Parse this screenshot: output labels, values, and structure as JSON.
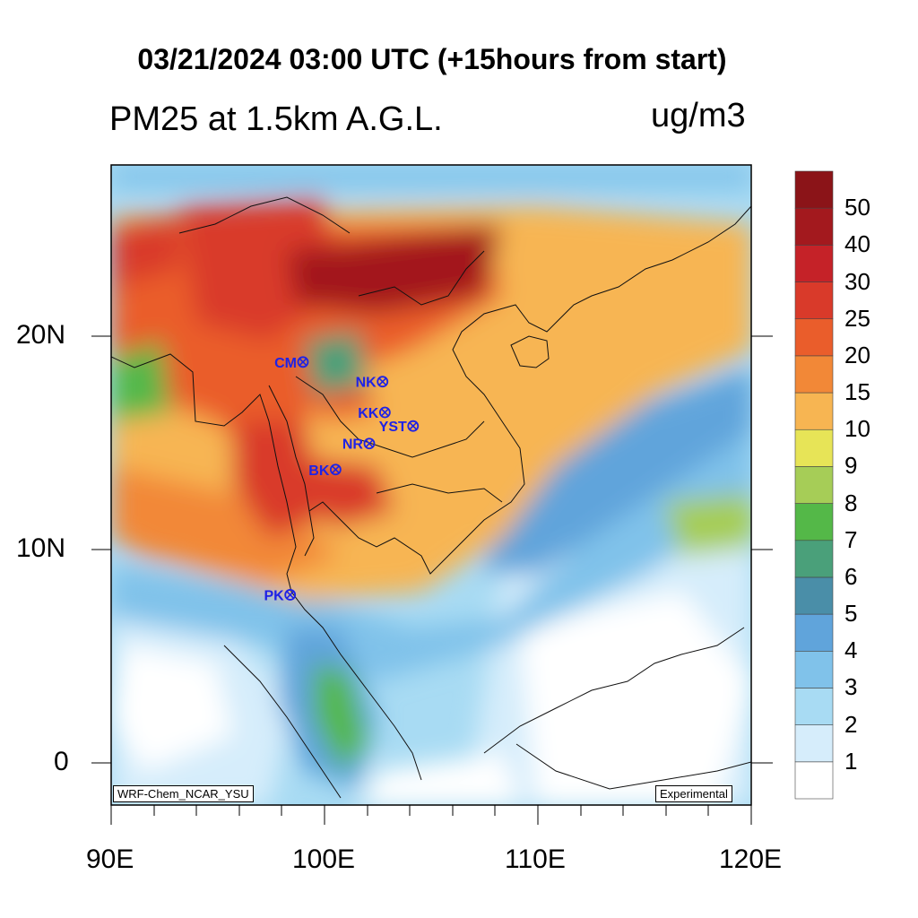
{
  "header": {
    "title": "03/21/2024 03:00 UTC (+15hours from start)",
    "subtitle": "PM25 at 1.5km A.G.L.",
    "units": "ug/m3"
  },
  "axes": {
    "x_ticks": [
      "90E",
      "100E",
      "110E",
      "120E"
    ],
    "y_ticks": [
      "20N",
      "10N",
      "0"
    ]
  },
  "colorbar": {
    "levels": [
      "1",
      "2",
      "3",
      "4",
      "5",
      "6",
      "7",
      "8",
      "9",
      "10",
      "15",
      "20",
      "25",
      "30",
      "40",
      "50"
    ],
    "colors": [
      "#ffffff",
      "#d6edfb",
      "#a8dbf3",
      "#80c2ea",
      "#60a4db",
      "#4a8ea8",
      "#4aa07a",
      "#54b848",
      "#a6cd57",
      "#e7e457",
      "#f7b552",
      "#f28837",
      "#ea5d2b",
      "#d93a2a",
      "#c52228",
      "#a3191e",
      "#8b1418"
    ]
  },
  "map": {
    "stations": [
      {
        "label": "CM",
        "lon": 98.99,
        "lat": 18.79
      },
      {
        "label": "NK",
        "lon": 102.72,
        "lat": 17.87
      },
      {
        "label": "KK",
        "lon": 102.83,
        "lat": 16.43
      },
      {
        "label": "YST",
        "lon": 104.15,
        "lat": 15.79
      },
      {
        "label": "NR",
        "lon": 102.1,
        "lat": 14.97
      },
      {
        "label": "BK",
        "lon": 100.52,
        "lat": 13.75
      },
      {
        "label": "PK",
        "lon": 98.39,
        "lat": 7.88
      }
    ],
    "left_stamp": "WRF-Chem_NCAR_YSU",
    "right_stamp": "Experimental"
  }
}
